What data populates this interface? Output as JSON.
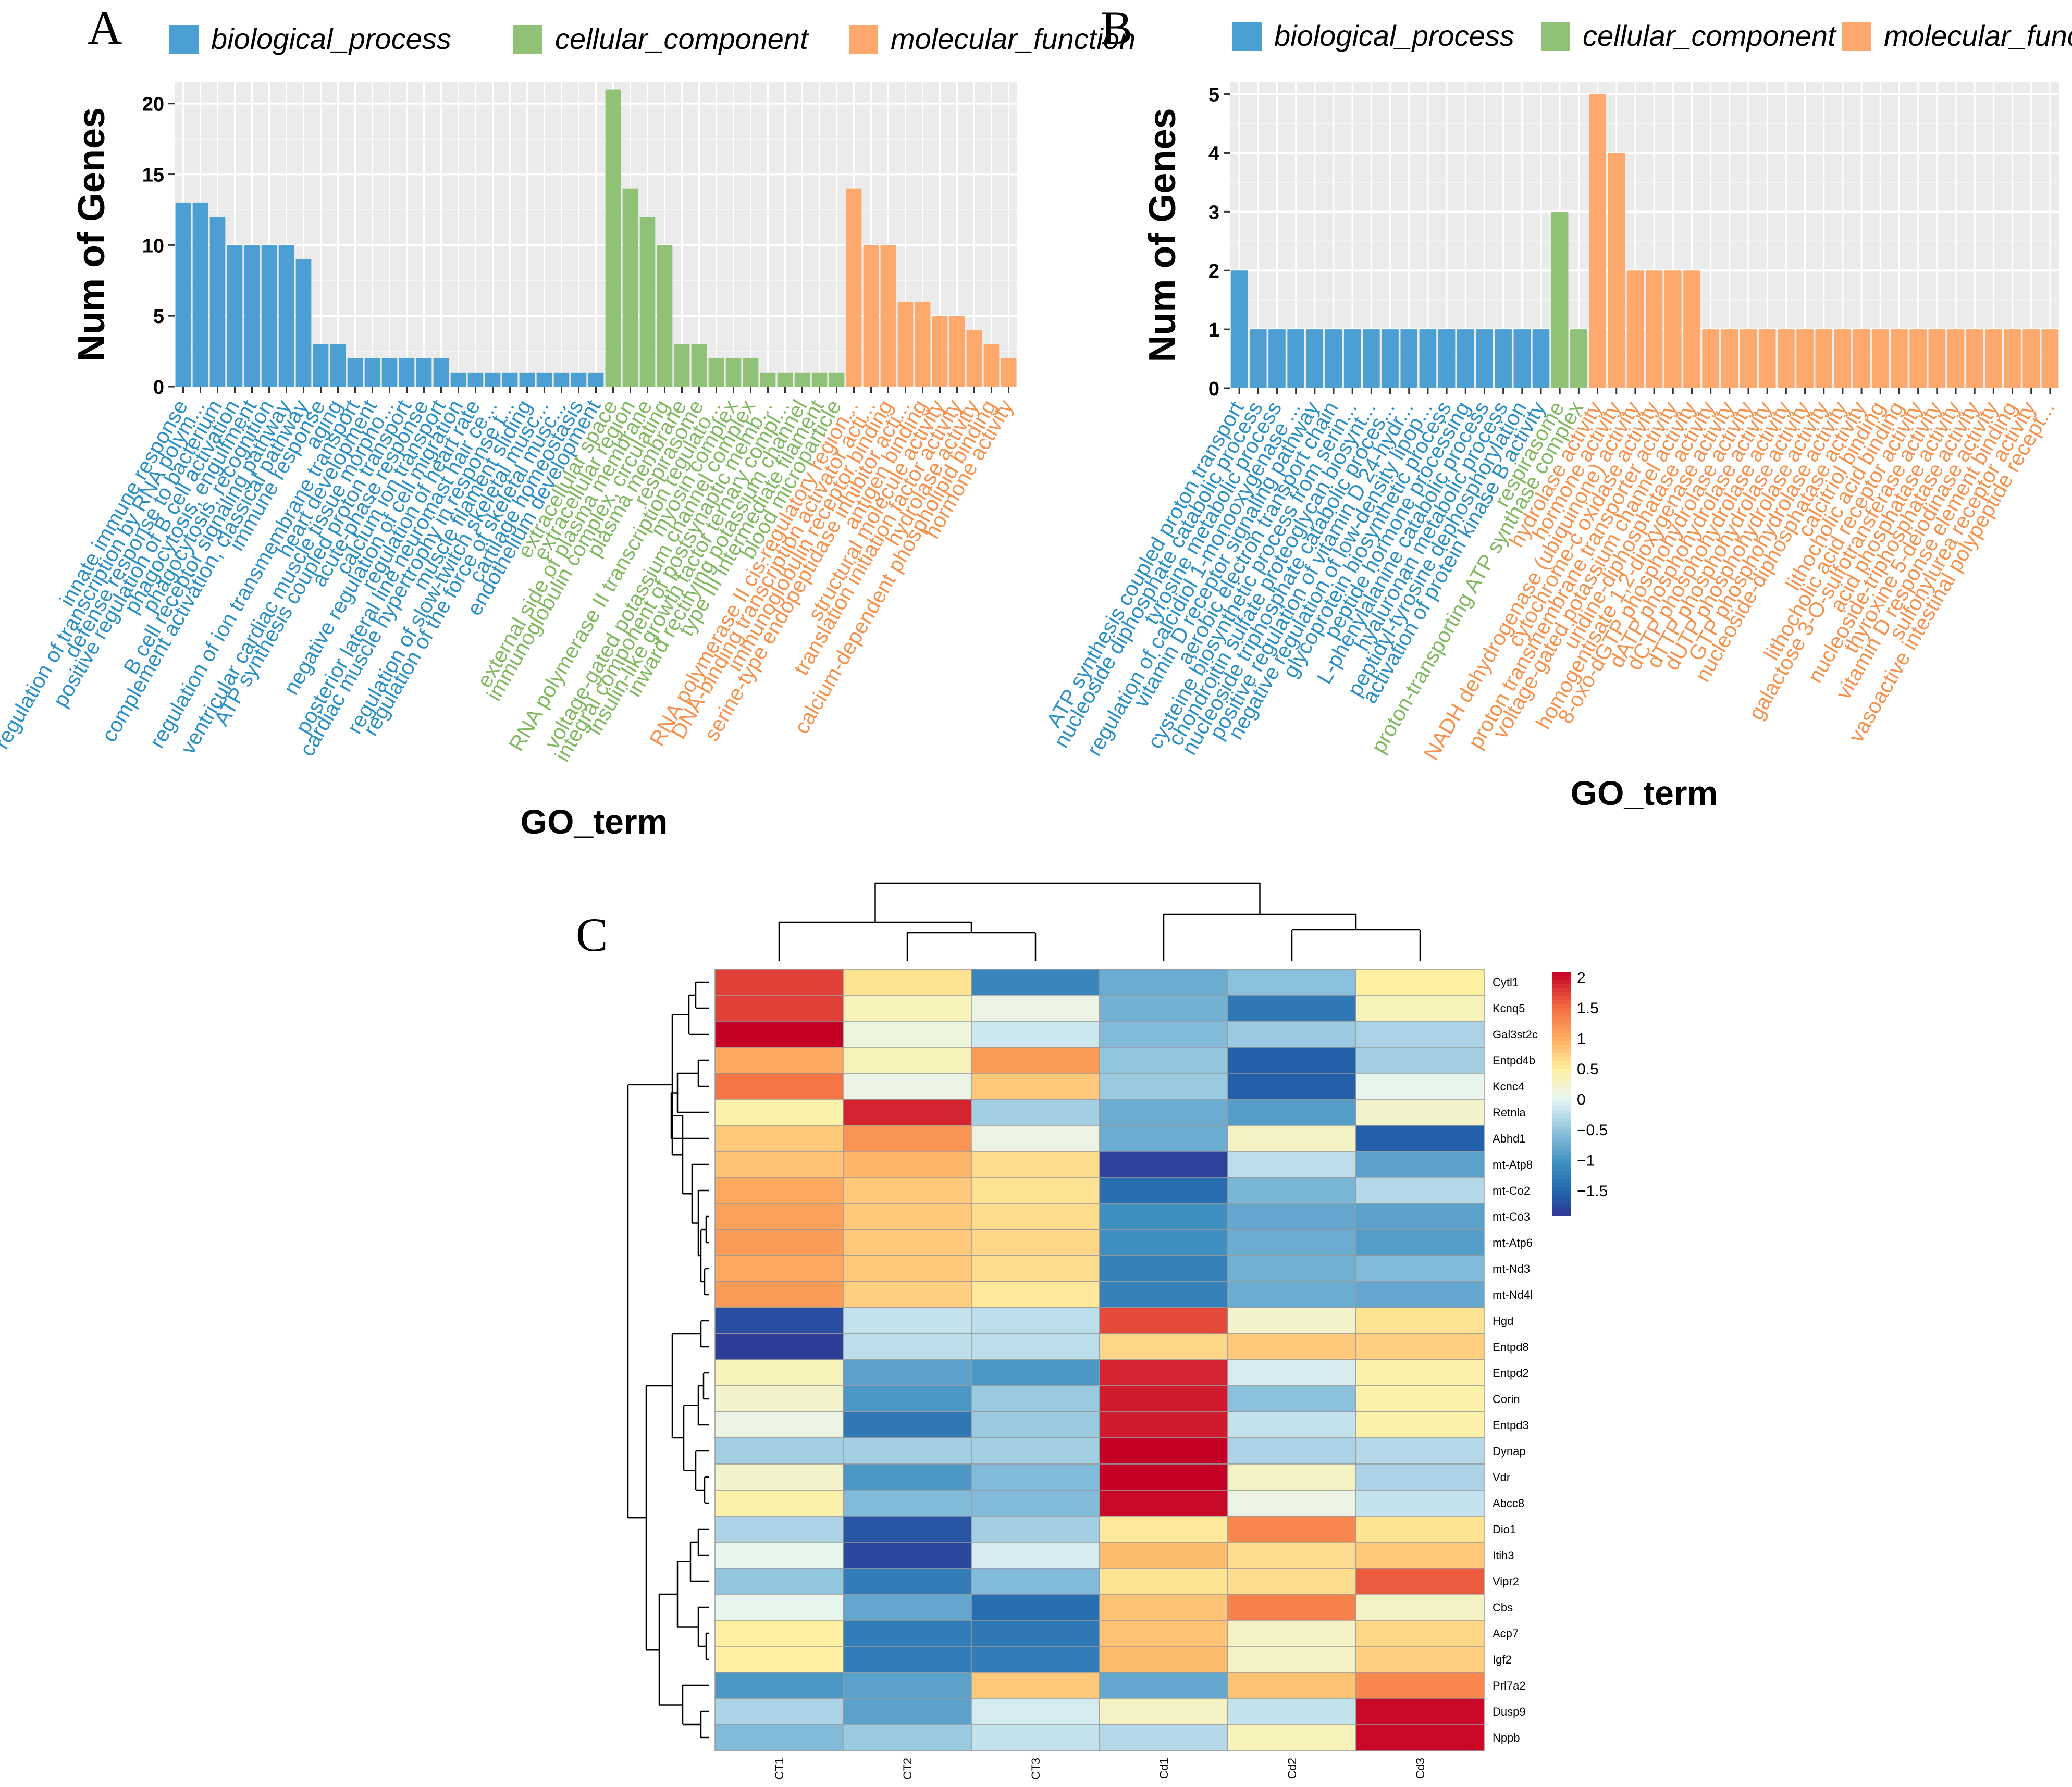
{
  "chart_data": [
    {
      "panel": "A",
      "type": "bar",
      "title": "",
      "xlabel": "GO_term",
      "ylabel": "Num of Genes",
      "ylim": [
        0,
        21.5
      ],
      "yticks": [
        0,
        5,
        10,
        15,
        20
      ],
      "grid": true,
      "legend": {
        "position": "top",
        "items": [
          {
            "name": "biological_process",
            "color": "#4c9fd2"
          },
          {
            "name": "cellular_component",
            "color": "#8fc177"
          },
          {
            "name": "molecular_function",
            "color": "#fda96e"
          }
        ]
      },
      "categories": [
        "innate immune response",
        "regulation of transcription by RNA polym...",
        "defense response to bacterium",
        "positive regulation of B cell activation",
        "phagocytosis, engulfment",
        "phagocytosis, recognition",
        "B cell receptor signaling pathway",
        "complement activation, classical pathway",
        "immune response",
        "aging",
        "regulation of ion transmembrane transport",
        "heart development",
        "ventricular cardiac muscle tissue morpho...",
        "ATP synthesis coupled proton transport",
        "acute-phase response",
        "calcium ion transport",
        "negative regulation of cell migration",
        "regulation of heart rate",
        "posterior lateral line neuromast hair ce...",
        "cardiac muscle hypertrophy in response t...",
        "muscle filament sliding",
        "regulation of slow-twitch skeletal musc...",
        "regulation of the force of skeletal musc...",
        "cartilage homeostasis",
        "endothelium development",
        "extracellular space",
        "extracellular region",
        "external side of plasma membrane",
        "immunoglobulin complex, circulating",
        "plasma membrane",
        "respirasome",
        "RNA polymerase II transcription regulato...",
        "myosin complex",
        "voltage-gated potassium channel complex",
        "integral component of postsynaptic memb...",
        "insulin-like growth factor ternary compl...",
        "inward rectifying potassium channel",
        "type III intermediate filament",
        "blood microparticle",
        "RNA polymerase II cis-regulatory region...",
        "DNA-binding transcription activator acti...",
        "immunoglobulin receptor binding",
        "serine-type endopeptidase inhibitor acti...",
        "antigen binding",
        "structural molecule activity",
        "translation initiation factor activity",
        "hydrolase activity",
        "calcium-dependent phospholipid binding",
        "hormone activity"
      ],
      "values": [
        13,
        13,
        12,
        10,
        10,
        10,
        10,
        9,
        3,
        3,
        2,
        2,
        2,
        2,
        2,
        2,
        1,
        1,
        1,
        1,
        1,
        1,
        1,
        1,
        1,
        21,
        14,
        12,
        10,
        3,
        3,
        2,
        2,
        2,
        1,
        1,
        1,
        1,
        1,
        14,
        10,
        10,
        6,
        6,
        5,
        5,
        4,
        3,
        2
      ],
      "groups": [
        "bp",
        "bp",
        "bp",
        "bp",
        "bp",
        "bp",
        "bp",
        "bp",
        "bp",
        "bp",
        "bp",
        "bp",
        "bp",
        "bp",
        "bp",
        "bp",
        "bp",
        "bp",
        "bp",
        "bp",
        "bp",
        "bp",
        "bp",
        "bp",
        "bp",
        "cc",
        "cc",
        "cc",
        "cc",
        "cc",
        "cc",
        "cc",
        "cc",
        "cc",
        "cc",
        "cc",
        "cc",
        "cc",
        "cc",
        "mf",
        "mf",
        "mf",
        "mf",
        "mf",
        "mf",
        "mf",
        "mf",
        "mf",
        "mf"
      ]
    },
    {
      "panel": "B",
      "type": "bar",
      "title": "",
      "xlabel": "GO_term",
      "ylabel": "Num of Genes",
      "ylim": [
        0,
        5.2
      ],
      "yticks": [
        0,
        1,
        2,
        3,
        4,
        5
      ],
      "grid": true,
      "legend": {
        "position": "top",
        "items": [
          {
            "name": "biological_process",
            "color": "#4c9fd2"
          },
          {
            "name": "cellular_component",
            "color": "#8fc177"
          },
          {
            "name": "molecular_function",
            "color": "#fda96e"
          }
        ]
      },
      "categories": [
        "ATP synthesis coupled proton transport",
        "nucleoside diphosphate catabolic process",
        "tyrosine metabolic process",
        "regulation of calcidiol 1-monooxygenase ...",
        "vitamin D receptor signaling pathway",
        "aerobic electron transport chain",
        "cysteine biosynthetic process from serin...",
        "chondroitin sulfate proteoglycan biosynt...",
        "nucleoside triphosphate catabolic proces...",
        "positive regulation of vitamin D 24-hydr...",
        "negative regulation of low-density lipop...",
        "glycoprotein biosynthetic process",
        "peptide hormone processing",
        "L-phenylalanine catabolic process",
        "hyaluronan metabolic process",
        "peptidyl-tyrosine dephosphorylation",
        "activation of protein kinase B activity",
        "respirasome",
        "proton-transporting ATP synthase complex",
        "hydrolase activity",
        "hormone activity",
        "NADH dehydrogenase (ubiquinone) activity",
        "cytochrome-c oxidase activity",
        "proton transmembrane transporter activity",
        "voltage-gated potassium channel activity",
        "uridine-diphosphatase activity",
        "homogentisate 1,2-dioxygenase activity",
        "8-oxo-dGTP phosphohydrolase activity",
        "dATP phosphohydrolase activity",
        "dCTP phosphohydrolase activity",
        "dTTP phosphohydrolase activity",
        "dUTP phosphohydrolase activity",
        "GTP phosphohydrolase activity",
        "nucleoside-diphosphatase activity",
        "calcitriol binding",
        "lithocholic acid binding",
        "lithocholic acid receptor activity",
        "galactose 3-O-sulfotransferase activity",
        "acid phosphatase activity",
        "nucleoside-triphosphatase activity",
        "thyroxine 5-deiodinase activity",
        "vitamin D response element binding",
        "sulfonylurea receptor activity",
        "vasoactive intestinal polypeptide recept..."
      ],
      "values": [
        2,
        1,
        1,
        1,
        1,
        1,
        1,
        1,
        1,
        1,
        1,
        1,
        1,
        1,
        1,
        1,
        1,
        3,
        1,
        5,
        4,
        2,
        2,
        2,
        2,
        1,
        1,
        1,
        1,
        1,
        1,
        1,
        1,
        1,
        1,
        1,
        1,
        1,
        1,
        1,
        1,
        1,
        1,
        1
      ],
      "groups": [
        "bp",
        "bp",
        "bp",
        "bp",
        "bp",
        "bp",
        "bp",
        "bp",
        "bp",
        "bp",
        "bp",
        "bp",
        "bp",
        "bp",
        "bp",
        "bp",
        "bp",
        "cc",
        "cc",
        "mf",
        "mf",
        "mf",
        "mf",
        "mf",
        "mf",
        "mf",
        "mf",
        "mf",
        "mf",
        "mf",
        "mf",
        "mf",
        "mf",
        "mf",
        "mf",
        "mf",
        "mf",
        "mf",
        "mf",
        "mf",
        "mf",
        "mf",
        "mf",
        "mf"
      ]
    },
    {
      "panel": "C",
      "type": "heatmap",
      "title": "",
      "xlabel": "",
      "ylabel": "",
      "columns": [
        "CT1",
        "CT2",
        "CT3",
        "Cd1",
        "Cd2",
        "Cd3"
      ],
      "rows": [
        "Cytl1",
        "Kcnq5",
        "Gal3st2c",
        "Entpd4b",
        "Kcnc4",
        "Retnla",
        "Abhd1",
        "mt-Atp8",
        "mt-Co2",
        "mt-Co3",
        "mt-Atp6",
        "mt-Nd3",
        "mt-Nd4l",
        "Hgd",
        "Entpd8",
        "Entpd2",
        "Corin",
        "Entpd3",
        "Dynap",
        "Vdr",
        "Abcc8",
        "Dio1",
        "Itih3",
        "Vipr2",
        "Cbs",
        "Acp7",
        "Igf2",
        "Prl7a2",
        "Dusp9",
        "Nppb"
      ],
      "values": [
        [
          1.75,
          0.6,
          -1.15,
          -0.75,
          -0.55,
          0.5
        ],
        [
          1.75,
          0.35,
          0.1,
          -0.7,
          -1.3,
          0.35
        ],
        [
          2.1,
          0.15,
          -0.15,
          -0.6,
          -0.45,
          -0.35
        ],
        [
          1.05,
          0.35,
          1.15,
          -0.5,
          -1.55,
          -0.4
        ],
        [
          1.45,
          0.1,
          0.8,
          -0.45,
          -1.55,
          0.05
        ],
        [
          0.45,
          1.9,
          -0.4,
          -0.75,
          -0.9,
          0.25
        ],
        [
          0.8,
          1.2,
          0.1,
          -0.75,
          0.3,
          -1.55
        ],
        [
          0.85,
          0.95,
          0.65,
          -1.8,
          -0.25,
          -0.85
        ],
        [
          1.05,
          0.8,
          0.6,
          -1.4,
          -0.65,
          -0.3
        ],
        [
          1.1,
          0.8,
          0.65,
          -1.05,
          -0.8,
          -0.85
        ],
        [
          1.15,
          0.8,
          0.7,
          -1.05,
          -0.75,
          -0.9
        ],
        [
          1.05,
          0.8,
          0.65,
          -1.2,
          -0.7,
          -0.6
        ],
        [
          1.15,
          0.75,
          0.55,
          -1.2,
          -0.75,
          -0.8
        ],
        [
          -1.7,
          -0.2,
          -0.25,
          1.7,
          0.25,
          0.6
        ],
        [
          -1.85,
          -0.25,
          -0.25,
          0.7,
          0.8,
          0.75
        ],
        [
          0.35,
          -0.85,
          -0.95,
          1.9,
          -0.1,
          0.45
        ],
        [
          0.25,
          -0.95,
          -0.45,
          1.95,
          -0.55,
          0.45
        ],
        [
          0.1,
          -1.3,
          -0.45,
          1.95,
          -0.2,
          0.45
        ],
        [
          -0.4,
          -0.4,
          -0.4,
          2.1,
          -0.35,
          -0.3
        ],
        [
          0.25,
          -0.95,
          -0.6,
          2.1,
          0.3,
          -0.35
        ],
        [
          0.45,
          -0.6,
          -0.6,
          2.05,
          0.1,
          -0.2
        ],
        [
          -0.35,
          -1.65,
          -0.4,
          0.55,
          1.3,
          0.6
        ],
        [
          0.05,
          -1.75,
          -0.1,
          0.9,
          0.65,
          0.8
        ],
        [
          -0.5,
          -1.25,
          -0.6,
          0.6,
          0.65,
          1.6
        ],
        [
          0.05,
          -0.8,
          -1.4,
          0.85,
          1.35,
          0.3
        ],
        [
          0.5,
          -1.25,
          -1.3,
          0.85,
          0.3,
          0.7
        ],
        [
          0.5,
          -1.25,
          -1.25,
          0.9,
          0.3,
          0.75
        ],
        [
          -0.95,
          -0.85,
          0.8,
          -0.8,
          0.85,
          1.3
        ],
        [
          -0.35,
          -0.85,
          -0.1,
          0.3,
          -0.2,
          2.05
        ],
        [
          -0.6,
          -0.45,
          -0.2,
          -0.3,
          0.35,
          2.05
        ]
      ],
      "colorbar": {
        "min": -1.9,
        "max": 2.1,
        "ticks": [
          2,
          1.5,
          1,
          0.5,
          0,
          -0.5,
          -1,
          -1.5
        ],
        "tick_labels": [
          "2",
          "1.5",
          "1",
          "0.5",
          "0",
          "−0.5",
          "−1",
          "−1.5"
        ]
      }
    }
  ],
  "panel_labels": {
    "a": "A",
    "b": "B",
    "c": "C"
  },
  "colors": {
    "biological_process": "#4c9fd2",
    "cellular_component": "#8fc177",
    "molecular_function": "#fda96e",
    "bp_text": "#2b8fc6",
    "cc_text": "#7fb85f",
    "mf_text": "#f6914c",
    "panel_bg": "#ebebeb"
  }
}
